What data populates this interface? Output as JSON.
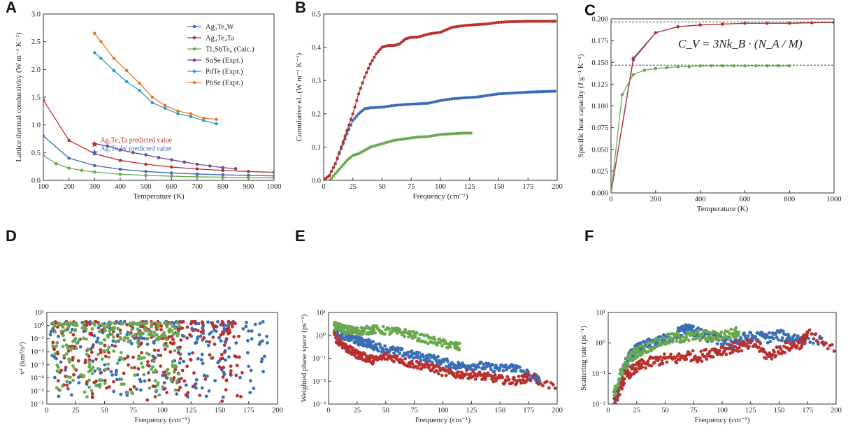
{
  "chart_data": [
    {
      "id": "A",
      "type": "line",
      "panel_label": "A",
      "xlabel": "Temperature (K)",
      "ylabel": "Lattice thermal conductivity (W m⁻¹ K⁻¹)",
      "xlim": [
        100,
        1000
      ],
      "ylim": [
        0,
        3.0
      ],
      "xticks": [
        "100",
        "200",
        "300",
        "400",
        "500",
        "600",
        "700",
        "800",
        "900",
        "1000"
      ],
      "yticks": [
        "0.0",
        "0.5",
        "1.0",
        "1.5",
        "2.0",
        "2.5",
        "3.0"
      ],
      "legend_position": "top-right",
      "series": [
        {
          "name": "Ag₃Te₄W",
          "color": "#3a6db5",
          "x": [
            100,
            200,
            300,
            400,
            500,
            600,
            700,
            800,
            900,
            1000
          ],
          "y": [
            0.8,
            0.4,
            0.267,
            0.2,
            0.16,
            0.133,
            0.114,
            0.1,
            0.089,
            0.08
          ]
        },
        {
          "name": "Ag₃Te₄Ta",
          "color": "#b8312f",
          "x": [
            100,
            200,
            300,
            400,
            500,
            600,
            700,
            800,
            900,
            1000
          ],
          "y": [
            1.45,
            0.72,
            0.48,
            0.36,
            0.29,
            0.24,
            0.205,
            0.18,
            0.16,
            0.145
          ]
        },
        {
          "name": "Tl₃SbTe₆ (Calc.)",
          "color": "#6aa84f",
          "x": [
            100,
            150,
            200,
            250,
            300,
            400,
            500,
            600,
            700,
            800,
            900,
            1000
          ],
          "y": [
            0.45,
            0.3,
            0.22,
            0.18,
            0.15,
            0.11,
            0.09,
            0.075,
            0.064,
            0.056,
            0.05,
            0.045
          ]
        },
        {
          "name": "SnSe (Expt.)",
          "color": "#6b4a8f",
          "x": [
            300,
            350,
            400,
            450,
            500,
            550,
            600,
            650,
            700,
            750,
            800,
            850
          ],
          "y": [
            0.66,
            0.62,
            0.55,
            0.5,
            0.46,
            0.41,
            0.37,
            0.33,
            0.29,
            0.26,
            0.23,
            0.21
          ]
        },
        {
          "name": "PdTe (Expt.)",
          "color": "#2a9fc9",
          "x": [
            300,
            325,
            375,
            425,
            475,
            525,
            575,
            625,
            675,
            725,
            775
          ],
          "y": [
            2.3,
            2.2,
            1.98,
            1.78,
            1.62,
            1.4,
            1.3,
            1.2,
            1.15,
            1.08,
            1.02
          ]
        },
        {
          "name": "PbSe (Expt.)",
          "color": "#e07b2a",
          "x": [
            300,
            325,
            375,
            425,
            475,
            525,
            575,
            625,
            675,
            725,
            775
          ],
          "y": [
            2.65,
            2.5,
            2.2,
            1.98,
            1.75,
            1.5,
            1.35,
            1.25,
            1.2,
            1.12,
            1.1
          ]
        }
      ],
      "predicted_points": [
        {
          "label": "Ag₃Te₄Ta predicted value",
          "x": 300,
          "y": 0.65,
          "color": "#b8312f"
        },
        {
          "label": "Ag₃Te₄W predicted value",
          "x": 300,
          "y": 0.5,
          "color": "#3a6db5"
        }
      ]
    },
    {
      "id": "B",
      "type": "line",
      "panel_label": "B",
      "xlabel": "Frequency (cm⁻¹)",
      "ylabel": "Cumulative κL (W m⁻¹ K⁻¹)",
      "xlim": [
        0,
        200
      ],
      "ylim": [
        0,
        0.5
      ],
      "xticks": [
        "0",
        "25",
        "50",
        "75",
        "100",
        "125",
        "150",
        "175",
        "200"
      ],
      "yticks": [
        "0.0",
        "0.1",
        "0.2",
        "0.3",
        "0.4",
        "0.5"
      ],
      "series": [
        {
          "name": "Ag₃Te₄W",
          "color": "#3a6db5",
          "x": [
            0,
            5,
            10,
            15,
            20,
            25,
            30,
            35,
            40,
            50,
            60,
            70,
            80,
            90,
            100,
            110,
            120,
            130,
            140,
            150,
            160,
            175,
            190,
            200
          ],
          "y": [
            0,
            0.015,
            0.05,
            0.095,
            0.14,
            0.18,
            0.2,
            0.215,
            0.218,
            0.22,
            0.225,
            0.228,
            0.23,
            0.232,
            0.24,
            0.245,
            0.248,
            0.25,
            0.255,
            0.26,
            0.262,
            0.265,
            0.267,
            0.268
          ]
        },
        {
          "name": "Ag₃Te₄Ta",
          "color": "#b8312f",
          "x": [
            0,
            5,
            10,
            15,
            20,
            25,
            30,
            35,
            40,
            45,
            50,
            55,
            60,
            65,
            70,
            75,
            80,
            90,
            100,
            110,
            120,
            130,
            140,
            150,
            160,
            175,
            190,
            200
          ],
          "y": [
            0,
            0.015,
            0.05,
            0.1,
            0.15,
            0.2,
            0.26,
            0.31,
            0.35,
            0.38,
            0.4,
            0.405,
            0.405,
            0.41,
            0.425,
            0.43,
            0.43,
            0.44,
            0.445,
            0.46,
            0.465,
            0.468,
            0.47,
            0.475,
            0.477,
            0.478,
            0.478,
            0.478
          ]
        },
        {
          "name": "Tl₃SbTe₆",
          "color": "#6aa84f",
          "x": [
            5,
            10,
            15,
            20,
            25,
            30,
            35,
            40,
            50,
            60,
            70,
            80,
            90,
            100,
            110,
            120,
            128
          ],
          "y": [
            0,
            0.02,
            0.04,
            0.06,
            0.075,
            0.08,
            0.09,
            0.1,
            0.11,
            0.12,
            0.125,
            0.13,
            0.132,
            0.138,
            0.14,
            0.142,
            0.142
          ]
        }
      ]
    },
    {
      "id": "C",
      "type": "line",
      "panel_label": "C",
      "xlabel": "Temperature (K)",
      "ylabel": "Specific heat capacity (J g⁻¹ K⁻¹)",
      "xlim": [
        0,
        1000
      ],
      "ylim": [
        0,
        0.2
      ],
      "xticks": [
        "0",
        "200",
        "400",
        "600",
        "800",
        "1000"
      ],
      "yticks": [
        "0.000",
        "0.025",
        "0.050",
        "0.075",
        "0.100",
        "0.125",
        "0.150",
        "0.175",
        "0.200"
      ],
      "equation": "C_V = 3Nk_B · (N_A / M)",
      "dashed_lines": [
        0.1965,
        0.1468
      ],
      "series": [
        {
          "name": "Ag₃Te₄W",
          "color": "#3a6db5",
          "x": [
            0,
            100,
            200,
            300,
            400,
            500,
            600,
            700,
            800,
            900,
            1000
          ],
          "y": [
            0,
            0.155,
            0.184,
            0.191,
            0.193,
            0.194,
            0.195,
            0.195,
            0.195,
            0.1955,
            0.196
          ]
        },
        {
          "name": "Ag₃Te₄Ta",
          "color": "#b8312f",
          "x": [
            0,
            100,
            200,
            300,
            400,
            500,
            600,
            700,
            800,
            900,
            1000
          ],
          "y": [
            0,
            0.153,
            0.184,
            0.191,
            0.193,
            0.194,
            0.195,
            0.195,
            0.195,
            0.1955,
            0.196
          ]
        },
        {
          "name": "Tl₃SbTe₆",
          "color": "#6aa84f",
          "x": [
            0,
            50,
            100,
            150,
            200,
            250,
            300,
            350,
            400,
            450,
            500,
            550,
            600,
            650,
            700,
            750,
            800
          ],
          "y": [
            0,
            0.113,
            0.136,
            0.141,
            0.143,
            0.144,
            0.145,
            0.145,
            0.146,
            0.146,
            0.146,
            0.146,
            0.146,
            0.146,
            0.146,
            0.146,
            0.146
          ]
        }
      ]
    },
    {
      "id": "D",
      "type": "scatter",
      "panel_label": "D",
      "xlabel": "Frequency (cm⁻¹)",
      "ylabel": "v² (km²/s²)",
      "xlim": [
        0,
        200
      ],
      "ylim_log10": [
        -6,
        1
      ],
      "xticks": [
        "0",
        "25",
        "50",
        "75",
        "100",
        "125",
        "150",
        "175",
        "200"
      ],
      "yticks": [
        "10⁻⁶",
        "10⁻⁵",
        "10⁻⁴",
        "10⁻³",
        "10⁻²",
        "10⁻¹",
        "10⁰",
        "10¹"
      ],
      "series": [
        {
          "name": "Ag₃Te₄W",
          "color": "#3a6db5",
          "x_range": [
            2,
            192
          ],
          "log10_v2_range": [
            -5.5,
            0.3
          ]
        },
        {
          "name": "Ag₃Te₄Ta",
          "color": "#b8312f",
          "x_range": [
            5,
            170
          ],
          "log10_v2_range": [
            -5.8,
            0.3
          ]
        },
        {
          "name": "Tl₃SbTe₆",
          "color": "#6aa84f",
          "x_range": [
            5,
            115
          ],
          "log10_v2_range": [
            -5.5,
            0.2
          ]
        }
      ]
    },
    {
      "id": "E",
      "type": "scatter",
      "panel_label": "E",
      "xlabel": "Frequency (cm⁻¹)",
      "ylabel": "Weighted phase space (ps⁻¹)",
      "xlim": [
        0,
        200
      ],
      "ylim_log10": [
        -3,
        1
      ],
      "xticks": [
        "0",
        "25",
        "50",
        "75",
        "100",
        "125",
        "150",
        "175",
        "200"
      ],
      "yticks": [
        "10⁻³",
        "10⁻²",
        "10⁻¹",
        "10⁰",
        "10¹"
      ],
      "series": [
        {
          "name": "Ag₃Te₄W",
          "color": "#3a6db5",
          "x": [
            5,
            10,
            15,
            20,
            25,
            30,
            35,
            40,
            50,
            60,
            70,
            80,
            90,
            100,
            110,
            120,
            130,
            140,
            150,
            160,
            165,
            180,
            185
          ],
          "y": [
            1.5,
            1.2,
            0.9,
            0.75,
            0.6,
            0.5,
            0.45,
            0.35,
            0.25,
            0.2,
            0.15,
            0.12,
            0.1,
            0.07,
            0.05,
            0.045,
            0.05,
            0.04,
            0.035,
            0.04,
            0.035,
            0.015,
            0.01
          ]
        },
        {
          "name": "Ag₃Te₄Ta",
          "color": "#b8312f",
          "x": [
            5,
            10,
            15,
            20,
            25,
            30,
            35,
            40,
            50,
            60,
            70,
            80,
            90,
            100,
            110,
            120,
            130,
            140,
            150,
            160,
            170,
            175,
            200
          ],
          "y": [
            0.9,
            0.5,
            0.3,
            0.2,
            0.15,
            0.12,
            0.1,
            0.08,
            0.12,
            0.1,
            0.06,
            0.05,
            0.04,
            0.025,
            0.02,
            0.02,
            0.018,
            0.015,
            0.012,
            0.01,
            0.012,
            0.015,
            0.005
          ]
        },
        {
          "name": "Tl₃SbTe₆",
          "color": "#6aa84f",
          "x": [
            5,
            10,
            15,
            20,
            25,
            30,
            35,
            40,
            50,
            60,
            70,
            80,
            90,
            100,
            110,
            115
          ],
          "y": [
            2.5,
            2.2,
            1.8,
            1.6,
            1.5,
            1.6,
            1.7,
            1.8,
            1.6,
            1.4,
            1.2,
            0.8,
            0.6,
            0.45,
            0.35,
            0.3
          ]
        }
      ]
    },
    {
      "id": "F",
      "type": "scatter",
      "panel_label": "F",
      "xlabel": "Frequency (cm⁻¹)",
      "ylabel": "Scattering rate (ps⁻¹)",
      "xlim": [
        0,
        200
      ],
      "ylim_log10": [
        -2,
        1
      ],
      "xticks": [
        "0",
        "25",
        "50",
        "75",
        "100",
        "125",
        "150",
        "175",
        "200"
      ],
      "yticks": [
        "10⁻²",
        "10⁻¹",
        "10⁰",
        "10¹"
      ],
      "series": [
        {
          "name": "Ag₃Te₄W",
          "color": "#3a6db5",
          "x": [
            5,
            10,
            15,
            20,
            25,
            30,
            40,
            50,
            60,
            65,
            70,
            75,
            80,
            90,
            100,
            110,
            120,
            130,
            140,
            150,
            160,
            170,
            190
          ],
          "y": [
            0.01,
            0.05,
            0.2,
            0.4,
            0.6,
            0.8,
            1.0,
            1.3,
            2.0,
            2.5,
            3.0,
            2.5,
            2.0,
            1.5,
            1.2,
            1.0,
            1.5,
            1.6,
            1.5,
            1.8,
            1.5,
            1.4,
            1.3
          ]
        },
        {
          "name": "Ag₃Te₄Ta",
          "color": "#b8312f",
          "x": [
            5,
            10,
            15,
            20,
            25,
            30,
            40,
            50,
            60,
            70,
            80,
            90,
            100,
            110,
            120,
            130,
            140,
            150,
            160,
            170,
            175,
            200
          ],
          "y": [
            0.01,
            0.03,
            0.08,
            0.12,
            0.15,
            0.2,
            0.25,
            0.3,
            0.3,
            0.4,
            0.35,
            0.5,
            0.6,
            0.7,
            0.8,
            0.9,
            0.35,
            0.6,
            0.8,
            1.0,
            2.0,
            0.5
          ]
        },
        {
          "name": "Tl₃SbTe₆",
          "color": "#6aa84f",
          "x": [
            5,
            10,
            15,
            20,
            25,
            30,
            40,
            50,
            60,
            70,
            80,
            90,
            100,
            110,
            115
          ],
          "y": [
            0.02,
            0.08,
            0.2,
            0.35,
            0.5,
            0.6,
            0.9,
            1.2,
            1.5,
            1.5,
            1.8,
            1.6,
            1.8,
            2.0,
            2.5
          ]
        }
      ]
    }
  ]
}
